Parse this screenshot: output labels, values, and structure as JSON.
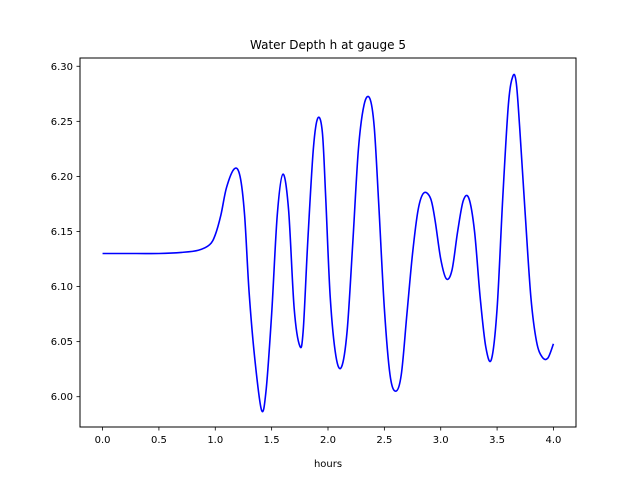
{
  "chart_data": {
    "type": "line",
    "title": "Water Depth h at gauge 5",
    "xlabel": "hours",
    "ylabel": "",
    "xlim": [
      -0.2,
      4.2
    ],
    "ylim": [
      5.9725,
      6.3075
    ],
    "xticks": [
      "0.0",
      "0.5",
      "1.0",
      "1.5",
      "2.0",
      "2.5",
      "3.0",
      "3.5",
      "4.0"
    ],
    "yticks": [
      "6.00",
      "6.05",
      "6.10",
      "6.15",
      "6.20",
      "6.25",
      "6.30"
    ],
    "grid": false,
    "series": [
      {
        "color": "#0000ff",
        "x": [
          0.0,
          0.3,
          0.5,
          0.7,
          0.85,
          0.95,
          1.0,
          1.05,
          1.1,
          1.17,
          1.22,
          1.26,
          1.3,
          1.35,
          1.41,
          1.45,
          1.5,
          1.55,
          1.6,
          1.65,
          1.7,
          1.75,
          1.78,
          1.82,
          1.87,
          1.91,
          1.95,
          1.98,
          2.02,
          2.07,
          2.12,
          2.17,
          2.22,
          2.27,
          2.32,
          2.37,
          2.41,
          2.45,
          2.5,
          2.55,
          2.6,
          2.65,
          2.7,
          2.75,
          2.8,
          2.85,
          2.91,
          2.95,
          3.0,
          3.05,
          3.1,
          3.15,
          3.2,
          3.25,
          3.3,
          3.35,
          3.4,
          3.45,
          3.5,
          3.55,
          3.6,
          3.64,
          3.67,
          3.7,
          3.75,
          3.8,
          3.85,
          3.9,
          3.95,
          4.0
        ],
        "y": [
          6.13,
          6.13,
          6.13,
          6.131,
          6.133,
          6.138,
          6.147,
          6.165,
          6.19,
          6.207,
          6.2,
          6.165,
          6.095,
          6.035,
          5.988,
          6.005,
          6.075,
          6.165,
          6.202,
          6.17,
          6.08,
          6.046,
          6.06,
          6.14,
          6.225,
          6.253,
          6.24,
          6.18,
          6.09,
          6.037,
          6.027,
          6.06,
          6.14,
          6.225,
          6.265,
          6.271,
          6.245,
          6.175,
          6.08,
          6.02,
          6.005,
          6.02,
          6.075,
          6.13,
          6.17,
          6.185,
          6.18,
          6.16,
          6.125,
          6.107,
          6.115,
          6.15,
          6.178,
          6.18,
          6.15,
          6.09,
          6.045,
          6.034,
          6.08,
          6.18,
          6.265,
          6.291,
          6.285,
          6.245,
          6.165,
          6.09,
          6.05,
          6.036,
          6.035,
          6.048
        ]
      }
    ]
  }
}
